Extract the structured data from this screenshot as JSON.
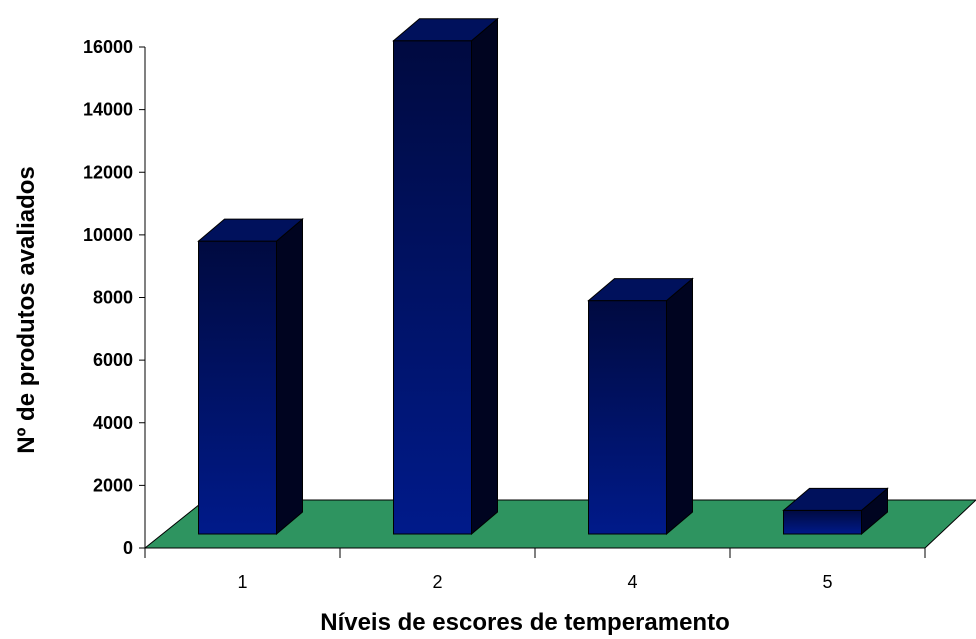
{
  "chart_data": {
    "type": "bar",
    "categories": [
      "1",
      "2",
      "4",
      "5"
    ],
    "values": [
      9800,
      16200,
      7900,
      1200
    ],
    "xlabel": "Níveis de escores de temperamento",
    "ylabel": "Nº de produtos avaliados",
    "ylim": [
      0,
      16000
    ],
    "yticks": [
      "0",
      "2000",
      "4000",
      "6000",
      "8000",
      "10000",
      "12000",
      "14000",
      "16000"
    ],
    "grid": false,
    "three_d": true
  },
  "colors": {
    "bar_front_bottom": "#001a8a",
    "bar_front_top": "#000a40",
    "bar_side": "#000420",
    "bar_top": "#00115c",
    "floor": "#2e9460"
  }
}
